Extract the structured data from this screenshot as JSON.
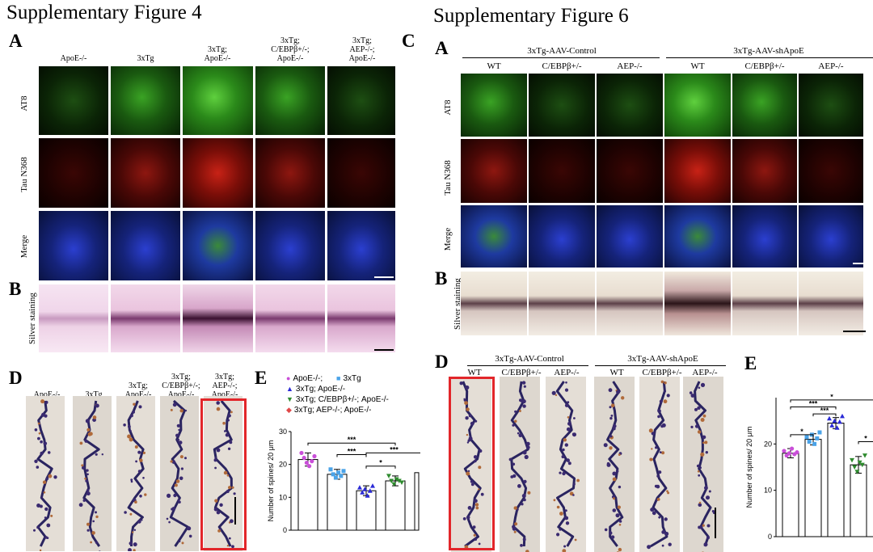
{
  "fig4": {
    "title": "Supplementary Figure 4",
    "panel_a": "A",
    "panel_b": "B",
    "panel_d": "D",
    "panel_e": "E",
    "columns": [
      "ApoE-/-",
      "3xTg",
      "3xTg;\nApoE-/-",
      "3xTg;\nC/EBPβ+/-;\nApoE-/-",
      "3xTg;\nAEP-/-;\nApoE-/-"
    ],
    "rows": [
      "AT8",
      "Tau N368",
      "Merge"
    ],
    "silver_label": "Silver staining",
    "dendrite_columns": [
      "ApoE-/-",
      "3xTg",
      "3xTg;\nApoE-/-",
      "3xTg;\nC/EBPβ+/-;\nApoE-/-",
      "3xTg;\nAEP-/-;\nApoE-/-"
    ]
  },
  "fig6": {
    "title": "Supplementary Figure 6",
    "panel_c_cut": "C",
    "panel_a": "A",
    "panel_b": "B",
    "panel_d": "D",
    "panel_e": "E",
    "groups": [
      "3xTg-AAV-Control",
      "3xTg-AAV-shApoE"
    ],
    "columns": [
      "WT",
      "C/EBPβ+/-",
      "AEP-/-",
      "WT",
      "C/EBPβ+/-",
      "AEP-/-"
    ],
    "rows": [
      "AT8",
      "Tau N368",
      "Merge"
    ],
    "silver_label": "Silver staining",
    "dendrite_groups": [
      "3xTg-AAV-Control",
      "3xTg-AAV-shApoE"
    ],
    "dendrite_columns": [
      "WT",
      "C/EBPβ+/-",
      "AEP-/-",
      "WT",
      "C/EBPβ+/-",
      "AEP-/-"
    ]
  },
  "chart_data": [
    {
      "type": "bar",
      "id": "fig4-E",
      "title": "",
      "ylabel": "Number of spines/ 20 μm",
      "xlabel": "",
      "ylim": [
        0,
        30
      ],
      "yticks": [
        0,
        10,
        20,
        30
      ],
      "legend": [
        {
          "name": "ApoE-/-;",
          "color": "#c94fd8",
          "marker": "circle"
        },
        {
          "name": "3xTg",
          "color": "#4aa3e8",
          "marker": "square"
        },
        {
          "name": "3xTg; ApoE-/-",
          "color": "#2a2ad6",
          "marker": "triangle-up"
        },
        {
          "name": "3xTg; C/EBPβ+/-; ApoE-/-",
          "color": "#2e8b2e",
          "marker": "triangle-down"
        },
        {
          "name": "3xTg; AEP-/-; ApoE-/-",
          "color": "#e04848",
          "marker": "diamond"
        }
      ],
      "values": [
        21.5,
        17.0,
        12.0,
        15.0,
        17.5
      ],
      "errors": [
        2.0,
        1.5,
        1.5,
        1.5,
        1.5
      ],
      "points": [
        [
          23.5,
          22.0,
          20.5,
          19.5,
          21.0,
          22.5
        ],
        [
          18.5,
          17.0,
          16.0,
          17.5,
          16.5,
          18.0
        ],
        [
          13.0,
          11.5,
          12.5,
          10.5,
          12.0,
          13.5
        ],
        [
          16.5,
          15.0,
          14.0,
          15.5,
          15.0,
          14.5
        ],
        [
          18.0,
          17.5,
          17.0
        ]
      ],
      "significance": [
        "***",
        "***",
        "***",
        "*"
      ]
    },
    {
      "type": "bar",
      "id": "fig6-E",
      "title": "",
      "ylabel": "Number of spines/ 20 μm",
      "xlabel": "",
      "ylim": [
        0,
        30
      ],
      "yticks": [
        0,
        10,
        20
      ],
      "values": [
        18.0,
        21.0,
        24.5,
        15.5,
        18.0
      ],
      "errors": [
        1.0,
        1.2,
        1.2,
        1.8,
        1.5
      ],
      "point_colors": [
        "#c94fd8",
        "#4aa3e8",
        "#2a2ad6",
        "#2e8b2e",
        "#e04848"
      ],
      "points": [
        [
          18.5,
          17.5,
          18.0,
          19.0,
          17.8,
          18.2
        ],
        [
          21.5,
          20.5,
          22.0,
          20.0,
          21.2,
          22.5
        ],
        [
          25.5,
          24.0,
          25.0,
          23.5,
          24.8,
          26.0
        ],
        [
          16.5,
          15.0,
          14.0,
          16.0,
          15.5,
          17.5
        ],
        []
      ],
      "significance": [
        "*",
        "*",
        "*",
        "*",
        "***",
        "***",
        "*",
        "*",
        "*"
      ]
    }
  ]
}
